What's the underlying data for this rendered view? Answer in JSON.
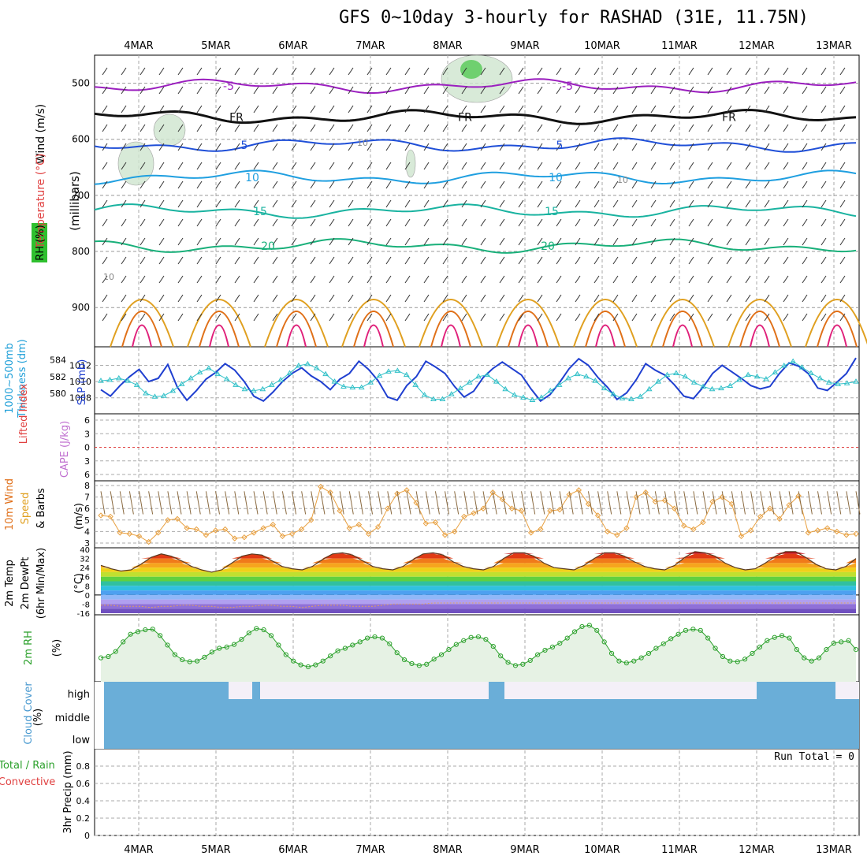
{
  "title": "GFS 0~10day 3-hourly for RASHAD (31E, 11.75N)",
  "dates": [
    "4MAR",
    "5MAR",
    "6MAR",
    "7MAR",
    "8MAR",
    "9MAR",
    "10MAR",
    "11MAR",
    "12MAR",
    "13MAR"
  ],
  "run_total": "Run Total = 0",
  "colors": {
    "purple": "#9b1fbf",
    "blue": "#1f4fd8",
    "lightblue": "#1f9fe0",
    "teal": "#19b3a0",
    "green": "#19b07a",
    "orange": "#e0a020",
    "darkorange": "#e07018",
    "magenta": "#e0207a",
    "wind10m": "#e8a040",
    "rh": "#2aa02a",
    "cloud": "#6aaed8",
    "slp": "#1f3fd0",
    "thick": "#30c0c8"
  },
  "chart_data": [
    {
      "type": "line",
      "panel": "upper-air",
      "ylabel": [
        "Wind (m/s)",
        "Temperature (°C)",
        "RH (%)",
        "(millibars)"
      ],
      "ylim": [
        450,
        970
      ],
      "yticks": [
        500,
        600,
        700,
        800,
        900
      ],
      "series": [
        {
          "name": "-5",
          "level": 505,
          "color": "purple",
          "labels": [
            "-5",
            "-5"
          ]
        },
        {
          "name": "FR",
          "level": 560,
          "color": "black",
          "labels": [
            "FR",
            "FR",
            "FR"
          ]
        },
        {
          "name": "5",
          "level": 610,
          "color": "blue",
          "labels": [
            "5",
            "5"
          ]
        },
        {
          "name": "10",
          "level": 668,
          "color": "lightblue",
          "labels": [
            "10",
            "10"
          ]
        },
        {
          "name": "15",
          "level": 728,
          "color": "teal",
          "labels": [
            "15",
            "15"
          ]
        },
        {
          "name": "20",
          "level": 790,
          "color": "green",
          "labels": [
            "20",
            "20"
          ]
        }
      ],
      "annotations": [
        "10",
        "10",
        "10"
      ]
    },
    {
      "type": "line",
      "panel": "slp-thickness",
      "ylabel_left": [
        "1000~500mb",
        "Thickness (dm)"
      ],
      "ylabel_right": "SLP (mb)",
      "left_ticks": [
        580,
        582,
        584
      ],
      "right_ticks": [
        1008,
        1010,
        1012
      ],
      "series": [
        {
          "name": "SLP",
          "color": "slp",
          "values": [
            1009.0,
            1008.2,
            1009.5,
            1010.6,
            1011.5,
            1010.0,
            1010.4,
            1012.1,
            1009.3,
            1007.7,
            1008.9,
            1010.3,
            1011.1,
            1012.2,
            1011.4,
            1010.0,
            1008.2,
            1007.6,
            1008.7,
            1010.0,
            1011.0,
            1011.7,
            1010.7,
            1010.0,
            1009.0,
            1010.3,
            1011.0,
            1012.5,
            1011.5,
            1010.1,
            1008.1,
            1007.7,
            1009.5,
            1010.6,
            1012.5,
            1011.8,
            1011.0,
            1009.4,
            1008.1,
            1008.8,
            1010.5,
            1011.6,
            1012.4,
            1011.6,
            1010.8,
            1009.1,
            1007.6,
            1008.4,
            1009.9,
            1011.6,
            1012.8,
            1012.0,
            1010.5,
            1009.3,
            1007.8,
            1008.6,
            1010.2,
            1012.2,
            1011.4,
            1010.8,
            1009.6,
            1008.2,
            1007.9,
            1009.3,
            1011.0,
            1012.0,
            1011.2,
            1010.4,
            1009.5,
            1009.1,
            1009.4,
            1011.0,
            1012.3,
            1011.9,
            1011.0,
            1009.2,
            1008.9,
            1009.9,
            1011.0,
            1012.9
          ]
        },
        {
          "name": "Thickness",
          "color": "thick",
          "values": [
            581.5,
            581.6,
            581.8,
            581.5,
            581.0,
            580.0,
            579.6,
            579.7,
            580.3,
            581.1,
            581.8,
            582.5,
            583.0,
            582.3,
            581.7,
            581.0,
            580.5,
            580.3,
            580.5,
            581.0,
            581.6,
            582.4,
            583.3,
            583.5,
            583.0,
            582.3,
            581.4,
            580.8,
            580.7,
            580.7,
            581.3,
            582.1,
            582.6,
            582.7,
            582.2,
            581.0,
            579.8,
            579.3,
            579.3,
            579.9,
            580.6,
            581.3,
            582.0,
            582.2,
            581.4,
            580.5,
            579.8,
            579.5,
            579.2,
            579.5,
            580.3,
            581.0,
            581.8,
            582.3,
            582.0,
            581.5,
            580.6,
            579.9,
            579.4,
            579.3,
            579.6,
            580.5,
            581.4,
            582.2,
            582.4,
            582.0,
            581.3,
            580.8,
            580.5,
            580.6,
            580.9,
            581.6,
            582.2,
            582.0,
            581.7,
            582.5,
            583.3,
            583.8,
            583.1,
            582.4,
            581.8,
            581.3,
            581.1,
            581.2,
            581.4
          ]
        }
      ]
    },
    {
      "type": "line",
      "panel": "stability",
      "ylabel": [
        "Lifted Index",
        "CAPE (J/kg)"
      ],
      "yticks": [
        "6",
        "3",
        "0",
        "3",
        "6"
      ],
      "lifted_index": 0
    },
    {
      "type": "line",
      "panel": "wind10m",
      "ylabel": [
        "10m Wind",
        "Speed",
        "& Barbs",
        "(m/s)"
      ],
      "yticks": [
        3,
        4,
        5,
        6,
        7,
        8
      ],
      "ylim": [
        3,
        8
      ],
      "series": [
        {
          "name": "10m Wind Speed",
          "color": "wind10m",
          "values": [
            5.4,
            5.3,
            3.9,
            3.8,
            3.6,
            3.1,
            3.9,
            5.0,
            5.1,
            4.3,
            4.2,
            3.7,
            4.1,
            4.2,
            3.4,
            3.5,
            3.9,
            4.3,
            4.6,
            3.6,
            3.8,
            4.2,
            5.0,
            7.9,
            7.4,
            5.8,
            4.3,
            4.6,
            3.8,
            4.4,
            6.0,
            7.3,
            7.6,
            6.5,
            4.7,
            4.8,
            3.7,
            4.0,
            5.3,
            5.6,
            6.0,
            7.4,
            6.8,
            6.0,
            5.8,
            3.9,
            4.2,
            5.8,
            5.9,
            7.2,
            7.6,
            6.4,
            5.4,
            4.0,
            3.7,
            4.3,
            7.0,
            7.4,
            6.6,
            6.7,
            6.0,
            4.5,
            4.2,
            4.8,
            6.6,
            7.0,
            6.4,
            3.6,
            4.1,
            5.3,
            6.0,
            5.1,
            6.3,
            7.1,
            3.9,
            4.1,
            4.3,
            4.0,
            3.7,
            3.8
          ]
        }
      ]
    },
    {
      "type": "area",
      "panel": "temp",
      "ylabel": [
        "2m Temp",
        "2m DewPt",
        "(6hr Min/Max)",
        "(°C)"
      ],
      "yticks": [
        40,
        32,
        24,
        16,
        8,
        0,
        -8,
        -16
      ],
      "ylim": [
        -16,
        40
      ],
      "series": [
        {
          "name": "2m Temp",
          "values": [
            26,
            23,
            21,
            22,
            27,
            33,
            36,
            34,
            30,
            25,
            22,
            20,
            22,
            28,
            34,
            36,
            35,
            30,
            25,
            23,
            22,
            25,
            31,
            36,
            37,
            35,
            30,
            25,
            23,
            22,
            25,
            31,
            36,
            37,
            35,
            29,
            25,
            23,
            22,
            25,
            32,
            37,
            37,
            34,
            28,
            24,
            23,
            22,
            26,
            32,
            37,
            37,
            34,
            29,
            25,
            23,
            22,
            26,
            33,
            38,
            37,
            34,
            28,
            24,
            22,
            23,
            28,
            34,
            38,
            38,
            33,
            27,
            23,
            22,
            25,
            32
          ]
        },
        {
          "name": "2m DewPt",
          "values": [
            -9,
            -9,
            -10,
            -10,
            -10,
            -11,
            -10,
            -10,
            -9,
            -9,
            -10,
            -10,
            -11,
            -11,
            -10,
            -10,
            -9,
            -9,
            -10,
            -10,
            -11,
            -10,
            -9,
            -9,
            -9,
            -10,
            -10,
            -10,
            -9,
            -8,
            -8,
            -8,
            -8,
            -7,
            -7,
            -7,
            -7,
            -7,
            -7,
            -7,
            -7,
            -7,
            -7,
            -7,
            -7,
            -7,
            -7,
            -7,
            -7,
            -7,
            -7,
            -7,
            -7,
            -7,
            -7,
            -7,
            -7,
            -7,
            -7,
            -7,
            -7,
            -7,
            -7,
            -7,
            -7,
            -7,
            -7,
            -7,
            -7,
            -7,
            -7,
            -7,
            -7,
            -7,
            -7,
            -7
          ]
        }
      ]
    },
    {
      "type": "line",
      "panel": "rh",
      "ylabel": [
        "2m RH",
        "(%)"
      ],
      "ylim": [
        0,
        100
      ],
      "series": [
        {
          "name": "2m RH",
          "color": "rh",
          "values": [
            35,
            37,
            45,
            60,
            72,
            76,
            79,
            80,
            70,
            55,
            40,
            32,
            29,
            30,
            36,
            44,
            50,
            52,
            56,
            64,
            74,
            81,
            79,
            70,
            55,
            40,
            30,
            24,
            21,
            24,
            30,
            38,
            46,
            50,
            55,
            60,
            66,
            68,
            66,
            57,
            43,
            32,
            26,
            23,
            25,
            33,
            40,
            48,
            56,
            62,
            67,
            68,
            64,
            53,
            38,
            28,
            23,
            25,
            31,
            40,
            47,
            52,
            58,
            66,
            76,
            84,
            86,
            78,
            60,
            42,
            30,
            27,
            30,
            35,
            42,
            50,
            57,
            65,
            72,
            78,
            80,
            78,
            66,
            50,
            37,
            30,
            29,
            33,
            42,
            52,
            62,
            67,
            70,
            66,
            48,
            35,
            30,
            35,
            48,
            58,
            60,
            62,
            48
          ]
        }
      ]
    },
    {
      "type": "area",
      "panel": "cloud",
      "ylabel": [
        "Cloud Cover",
        "(%)"
      ],
      "rows": [
        "high",
        "middle",
        "low"
      ]
    },
    {
      "type": "bar",
      "panel": "precip",
      "ylabel": [
        "3hr Precip (mm)",
        "Total / Rain",
        "Convective"
      ],
      "yticks": [
        0,
        0.2,
        0.4,
        0.6,
        0.8
      ],
      "ylim": [
        0,
        1
      ],
      "values": []
    }
  ]
}
